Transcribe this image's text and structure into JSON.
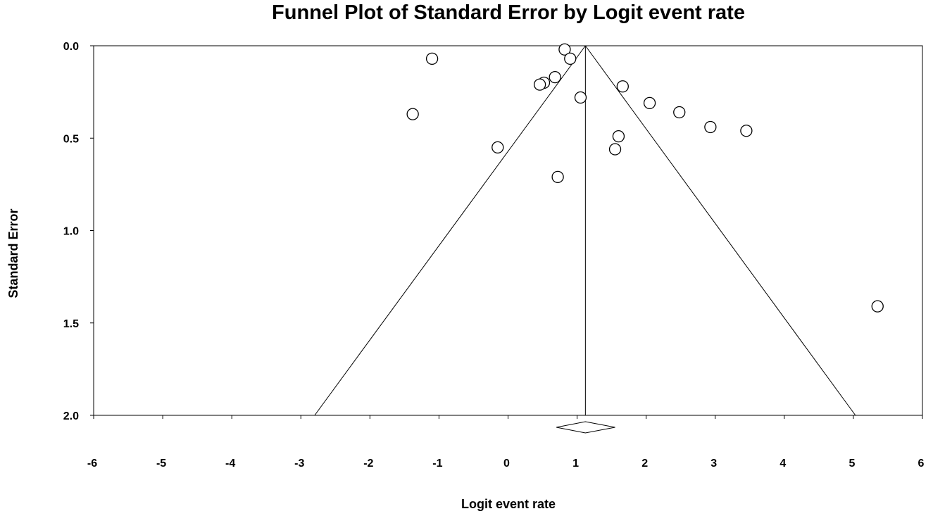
{
  "chart_data": {
    "type": "scatter",
    "title": "Funnel Plot of Standard Error by Logit event rate",
    "xlabel": "Logit event rate",
    "ylabel": "Standard Error",
    "xlim": [
      -6,
      6
    ],
    "ylim": [
      2.0,
      0.0
    ],
    "y_axis_inverted": true,
    "x_ticks": [
      -6,
      -5,
      -4,
      -3,
      -2,
      -1,
      0,
      1,
      2,
      3,
      4,
      5,
      6
    ],
    "x_tick_labels": [
      "-6",
      "-5",
      "-4",
      "-3",
      "-2",
      "-1",
      "0",
      "1",
      "2",
      "3",
      "4",
      "5",
      "6"
    ],
    "y_ticks": [
      0.0,
      0.5,
      1.0,
      1.5,
      2.0
    ],
    "y_tick_labels": [
      "0.0",
      "0.5",
      "1.0",
      "1.5",
      "2.0"
    ],
    "grid": false,
    "summary_effect": 1.12,
    "funnel_base": [
      -2.8,
      5.03
    ],
    "summary_diamond": {
      "center": 1.12,
      "lower": 0.7,
      "upper": 1.55
    },
    "points": [
      {
        "x": -1.1,
        "y": 0.07
      },
      {
        "x": -1.38,
        "y": 0.37
      },
      {
        "x": 0.82,
        "y": 0.02
      },
      {
        "x": 0.9,
        "y": 0.07
      },
      {
        "x": 0.68,
        "y": 0.17
      },
      {
        "x": 0.52,
        "y": 0.2
      },
      {
        "x": 0.46,
        "y": 0.21
      },
      {
        "x": 1.05,
        "y": 0.28
      },
      {
        "x": 1.66,
        "y": 0.22
      },
      {
        "x": 2.05,
        "y": 0.31
      },
      {
        "x": 2.48,
        "y": 0.36
      },
      {
        "x": 2.93,
        "y": 0.44
      },
      {
        "x": 3.45,
        "y": 0.46
      },
      {
        "x": 1.6,
        "y": 0.49
      },
      {
        "x": 1.55,
        "y": 0.56
      },
      {
        "x": -0.15,
        "y": 0.55
      },
      {
        "x": 0.72,
        "y": 0.71
      },
      {
        "x": 5.35,
        "y": 1.41
      }
    ]
  }
}
